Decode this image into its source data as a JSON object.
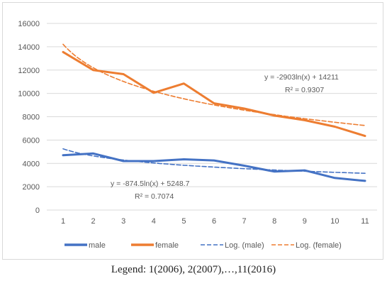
{
  "chart_data": {
    "type": "line",
    "x": [
      1,
      2,
      3,
      4,
      5,
      6,
      7,
      8,
      9,
      10,
      11
    ],
    "ylim": [
      0,
      16000
    ],
    "yticks": [
      0,
      2000,
      4000,
      6000,
      8000,
      10000,
      12000,
      14000,
      16000
    ],
    "grid": true,
    "legend_position": "bottom",
    "series": [
      {
        "name": "male",
        "color": "#4472c4",
        "style": "solid",
        "values": [
          4700,
          4850,
          4200,
          4200,
          4350,
          4250,
          3800,
          3300,
          3400,
          2750,
          2500
        ]
      },
      {
        "name": "female",
        "color": "#ed7d31",
        "style": "solid",
        "values": [
          13550,
          12000,
          11650,
          10050,
          10850,
          9150,
          8700,
          8100,
          7700,
          7150,
          6350
        ]
      },
      {
        "name": "Log. (male)",
        "color": "#4472c4",
        "style": "dashed",
        "trend": {
          "a": -874.5,
          "b": 5248.7
        }
      },
      {
        "name": "Log. (female)",
        "color": "#ed7d31",
        "style": "dashed",
        "trend": {
          "a": -2903,
          "b": 14211
        }
      }
    ],
    "annotations": {
      "female_eq": "y = -2903ln(x) + 14211",
      "female_r2": "R² = 0.9307",
      "male_eq": "y = -874.5ln(x) + 5248.7",
      "male_r2": "R² = 0.7074"
    }
  },
  "caption": "Legend: 1(2006), 2(2007),…,11(2016)"
}
